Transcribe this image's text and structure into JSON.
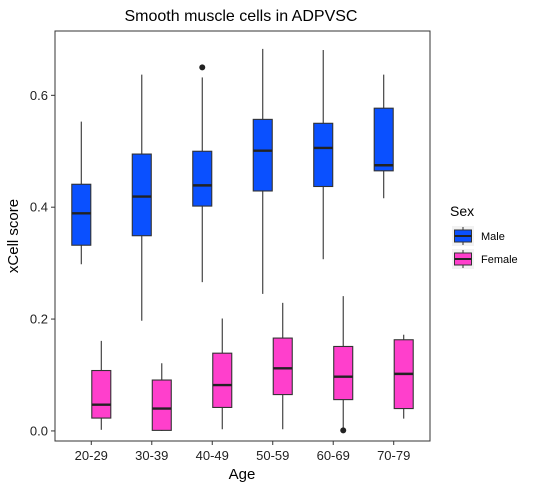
{
  "chart_data": {
    "type": "boxplot",
    "title": "Smooth muscle cells in ADPVSC",
    "xlabel": "Age",
    "ylabel": "xCell score",
    "ylim": [
      -0.018,
      0.715
    ],
    "yticks": [
      0.0,
      0.2,
      0.4,
      0.6
    ],
    "ytick_labels": [
      "0.0",
      "0.2",
      "0.4",
      "0.6"
    ],
    "categories": [
      "20-29",
      "30-39",
      "40-49",
      "50-59",
      "60-69",
      "70-79"
    ],
    "legend_title": "Sex",
    "legend_position": "right",
    "grid": false,
    "series": [
      {
        "name": "Male",
        "color": "#0a50ff",
        "boxes": [
          {
            "min": 0.298,
            "q1": 0.332,
            "median": 0.389,
            "q3": 0.441,
            "max": 0.553,
            "outliers": []
          },
          {
            "min": 0.197,
            "q1": 0.349,
            "median": 0.419,
            "q3": 0.495,
            "max": 0.637,
            "outliers": []
          },
          {
            "min": 0.266,
            "q1": 0.402,
            "median": 0.439,
            "q3": 0.5,
            "max": 0.632,
            "outliers": [
              0.65
            ]
          },
          {
            "min": 0.245,
            "q1": 0.429,
            "median": 0.501,
            "q3": 0.557,
            "max": 0.683,
            "outliers": []
          },
          {
            "min": 0.307,
            "q1": 0.437,
            "median": 0.506,
            "q3": 0.55,
            "max": 0.681,
            "outliers": []
          },
          {
            "min": 0.416,
            "q1": 0.465,
            "median": 0.475,
            "q3": 0.577,
            "max": 0.637,
            "outliers": []
          }
        ]
      },
      {
        "name": "Female",
        "color": "#ff3fcc",
        "boxes": [
          {
            "min": 0.002,
            "q1": 0.023,
            "median": 0.047,
            "q3": 0.108,
            "max": 0.161,
            "outliers": []
          },
          {
            "min": 0.0,
            "q1": 0.001,
            "median": 0.04,
            "q3": 0.091,
            "max": 0.121,
            "outliers": []
          },
          {
            "min": 0.003,
            "q1": 0.042,
            "median": 0.082,
            "q3": 0.139,
            "max": 0.201,
            "outliers": []
          },
          {
            "min": 0.003,
            "q1": 0.065,
            "median": 0.112,
            "q3": 0.166,
            "max": 0.229,
            "outliers": []
          },
          {
            "min": 0.003,
            "q1": 0.056,
            "median": 0.097,
            "q3": 0.151,
            "max": 0.241,
            "outliers": [
              0.001
            ]
          },
          {
            "min": 0.022,
            "q1": 0.04,
            "median": 0.102,
            "q3": 0.163,
            "max": 0.172,
            "outliers": []
          }
        ]
      }
    ]
  }
}
